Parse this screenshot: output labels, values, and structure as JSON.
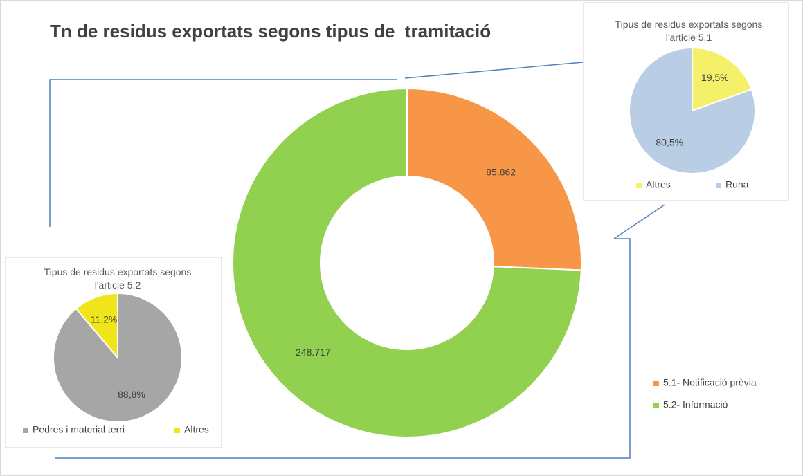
{
  "chart_data": [
    {
      "type": "donut",
      "title": "Tn de residus exportats segons tipus de  tramitació",
      "categories": [
        "5.1- Notificació prèvia",
        "5.2- Informació"
      ],
      "values": [
        85862,
        248717
      ],
      "value_labels": [
        "85.862",
        "248.717"
      ],
      "colors": [
        "#f79646",
        "#92d050"
      ],
      "legend": "right"
    },
    {
      "type": "pie",
      "title": "Tipus de residus exportats segons l'article 5.1",
      "categories": [
        "Altres",
        "Runa"
      ],
      "values": [
        19.5,
        80.5
      ],
      "value_labels": [
        "19,5%",
        "80,5%"
      ],
      "colors": [
        "#f4f06a",
        "#b9cde5"
      ],
      "legend": "bottom"
    },
    {
      "type": "pie",
      "title": "Tipus de residus exportats segons l'article 5.2",
      "categories": [
        "Pedres i material terri",
        "Altres"
      ],
      "values": [
        88.8,
        11.2
      ],
      "value_labels": [
        "88,8%",
        "11,2%"
      ],
      "colors": [
        "#a6a6a6",
        "#f0e51a"
      ],
      "legend": "bottom"
    }
  ]
}
